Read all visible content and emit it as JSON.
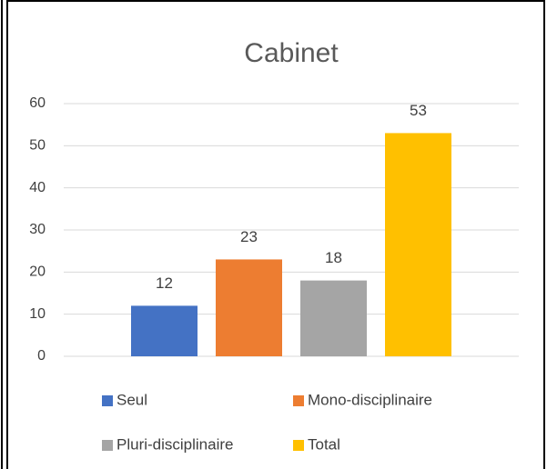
{
  "chart_data": {
    "type": "bar",
    "title": "Cabinet",
    "categories": [
      null
    ],
    "series": [
      {
        "name": "Seul",
        "color": "#4472c4",
        "values": [
          12
        ]
      },
      {
        "name": "Mono-disciplinaire",
        "color": "#ed7d31",
        "values": [
          23
        ]
      },
      {
        "name": "Pluri-disciplinaire",
        "color": "#a5a5a5",
        "values": [
          18
        ]
      },
      {
        "name": "Total",
        "color": "#ffc000",
        "values": [
          53
        ]
      }
    ],
    "ylim": [
      0,
      60
    ],
    "yticks": [
      0,
      10,
      20,
      30,
      40,
      50,
      60
    ],
    "grid": true,
    "legend": "bottom"
  }
}
